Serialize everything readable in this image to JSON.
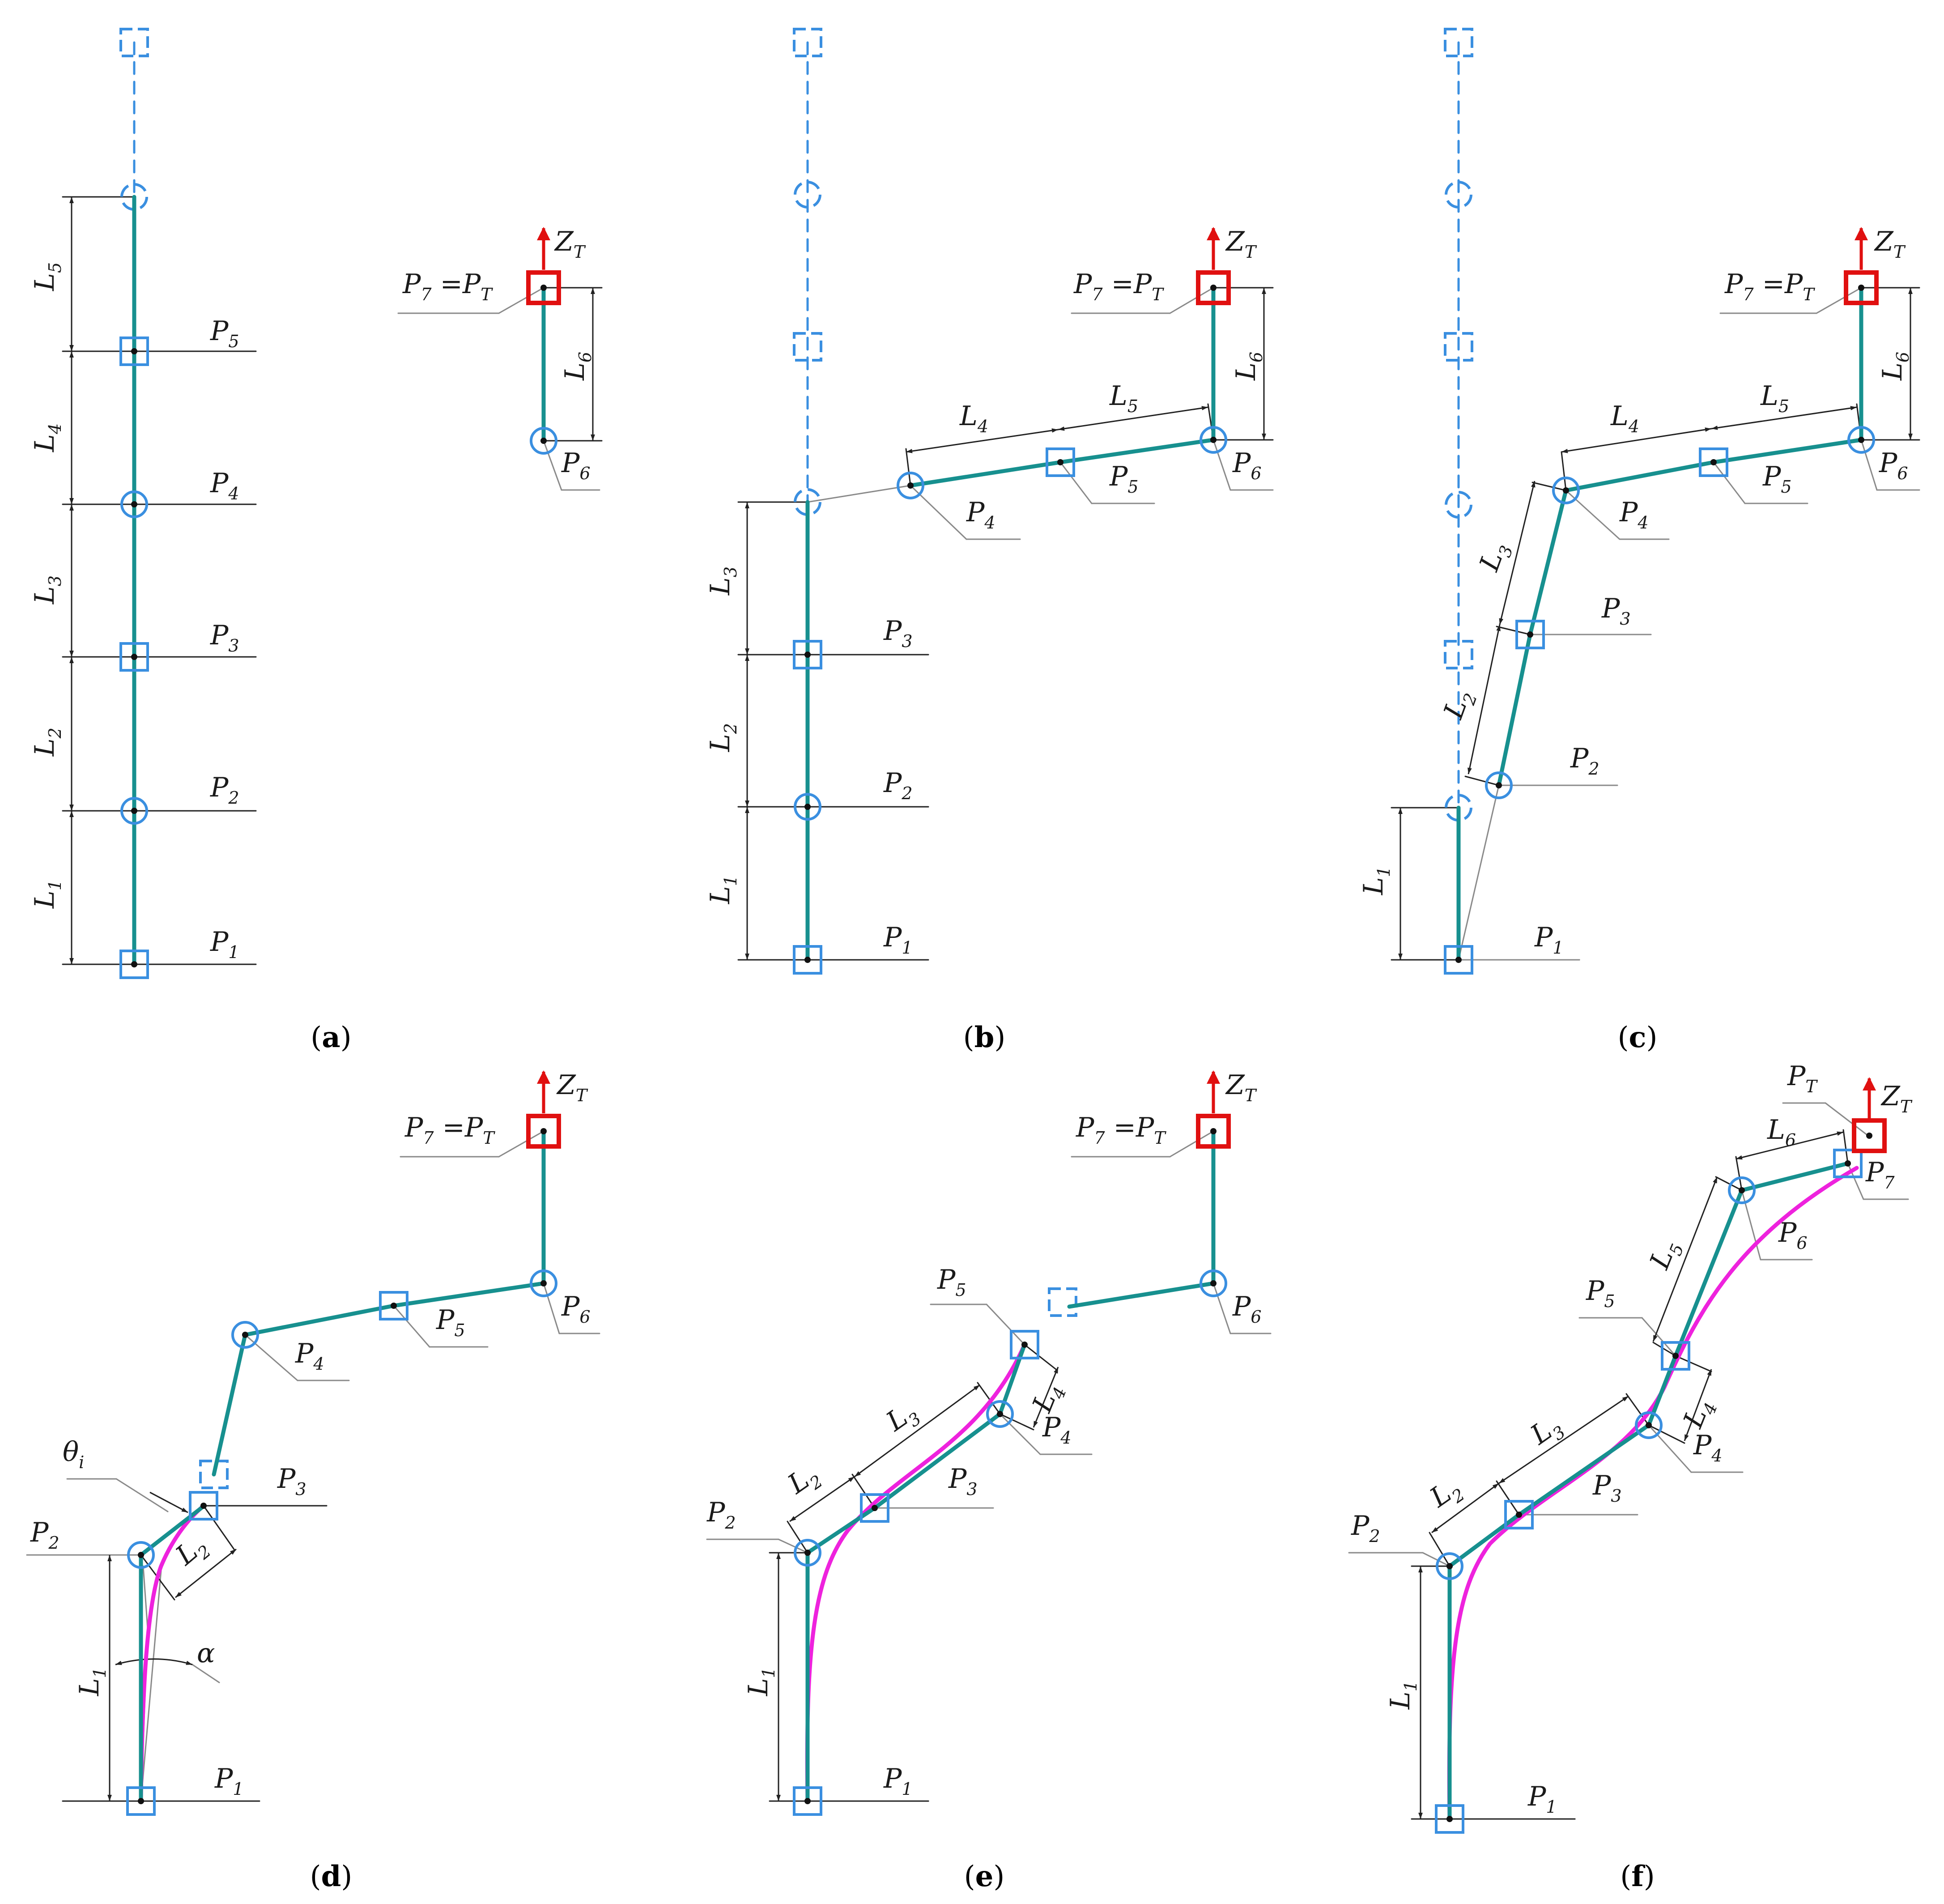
{
  "colors": {
    "link": "#17908f",
    "joint": "#3a8fe0",
    "ghost": "#3a8fe0",
    "target": "#e01010",
    "curve": "#ee22dd",
    "line": "#222222",
    "thin": "#8a8a8a"
  },
  "icons": {
    "rotary_joint": "circle-joint-icon",
    "prismatic_joint": "square-joint-icon",
    "target_frame": "red-square-target-icon",
    "axis_arrow": "arrow-up-icon"
  },
  "captions": {
    "a": {
      "open": "(",
      "letter": "a",
      "close": ")"
    },
    "b": {
      "open": "(",
      "letter": "b",
      "close": ")"
    },
    "c": {
      "open": "(",
      "letter": "c",
      "close": ")"
    },
    "d": {
      "open": "(",
      "letter": "d",
      "close": ")"
    },
    "e": {
      "open": "(",
      "letter": "e",
      "close": ")"
    },
    "f": {
      "open": "(",
      "letter": "f",
      "close": ")"
    }
  },
  "labels": {
    "a": {
      "P1": {
        "base": "P",
        "sub": "1"
      },
      "P2": {
        "base": "P",
        "sub": "2"
      },
      "P3": {
        "base": "P",
        "sub": "3"
      },
      "P4": {
        "base": "P",
        "sub": "4"
      },
      "P5": {
        "base": "P",
        "sub": "5"
      },
      "P6": {
        "base": "P",
        "sub": "6"
      },
      "L1": {
        "base": "L",
        "sub": "1"
      },
      "L2": {
        "base": "L",
        "sub": "2"
      },
      "L3": {
        "base": "L",
        "sub": "3"
      },
      "L4": {
        "base": "L",
        "sub": "4"
      },
      "L5": {
        "base": "L",
        "sub": "5"
      },
      "L6": {
        "base": "L",
        "sub": "6"
      },
      "P7": {
        "left": "P",
        "lsub": "7",
        "eq": " =",
        "right": "P",
        "rsub": "T"
      },
      "ZT": {
        "base": "Z",
        "sub": "T"
      }
    },
    "b": {
      "P1": {
        "base": "P",
        "sub": "1"
      },
      "P2": {
        "base": "P",
        "sub": "2"
      },
      "P3": {
        "base": "P",
        "sub": "3"
      },
      "P4": {
        "base": "P",
        "sub": "4"
      },
      "P5": {
        "base": "P",
        "sub": "5"
      },
      "P6": {
        "base": "P",
        "sub": "6"
      },
      "L1": {
        "base": "L",
        "sub": "1"
      },
      "L2": {
        "base": "L",
        "sub": "2"
      },
      "L3": {
        "base": "L",
        "sub": "3"
      },
      "L4": {
        "base": "L",
        "sub": "4"
      },
      "L5": {
        "base": "L",
        "sub": "5"
      },
      "L6": {
        "base": "L",
        "sub": "6"
      },
      "P7": {
        "left": "P",
        "lsub": "7",
        "eq": " =",
        "right": "P",
        "rsub": "T"
      },
      "ZT": {
        "base": "Z",
        "sub": "T"
      }
    },
    "c": {
      "P1": {
        "base": "P",
        "sub": "1"
      },
      "P2": {
        "base": "P",
        "sub": "2"
      },
      "P3": {
        "base": "P",
        "sub": "3"
      },
      "P4": {
        "base": "P",
        "sub": "4"
      },
      "P5": {
        "base": "P",
        "sub": "5"
      },
      "P6": {
        "base": "P",
        "sub": "6"
      },
      "L1": {
        "base": "L",
        "sub": "1"
      },
      "L2": {
        "base": "L",
        "sub": "2"
      },
      "L3": {
        "base": "L",
        "sub": "3"
      },
      "L4": {
        "base": "L",
        "sub": "4"
      },
      "L5": {
        "base": "L",
        "sub": "5"
      },
      "L6": {
        "base": "L",
        "sub": "6"
      },
      "P7": {
        "left": "P",
        "lsub": "7",
        "eq": " =",
        "right": "P",
        "rsub": "T"
      },
      "ZT": {
        "base": "Z",
        "sub": "T"
      }
    },
    "d": {
      "P1": {
        "base": "P",
        "sub": "1"
      },
      "P2": {
        "base": "P",
        "sub": "2"
      },
      "P3": {
        "base": "P",
        "sub": "3"
      },
      "P4": {
        "base": "P",
        "sub": "4"
      },
      "P5": {
        "base": "P",
        "sub": "5"
      },
      "P6": {
        "base": "P",
        "sub": "6"
      },
      "L1": {
        "base": "L",
        "sub": "1"
      },
      "L2": {
        "base": "L",
        "sub": "2"
      },
      "theta": {
        "base": "θ",
        "sub": "i"
      },
      "alpha": {
        "base": "α",
        "sub": ""
      },
      "P7": {
        "left": "P",
        "lsub": "7",
        "eq": " =",
        "right": "P",
        "rsub": "T"
      },
      "ZT": {
        "base": "Z",
        "sub": "T"
      }
    },
    "e": {
      "P1": {
        "base": "P",
        "sub": "1"
      },
      "P2": {
        "base": "P",
        "sub": "2"
      },
      "P3": {
        "base": "P",
        "sub": "3"
      },
      "P4": {
        "base": "P",
        "sub": "4"
      },
      "P5": {
        "base": "P",
        "sub": "5"
      },
      "P6": {
        "base": "P",
        "sub": "6"
      },
      "L1": {
        "base": "L",
        "sub": "1"
      },
      "L2": {
        "base": "L",
        "sub": "2"
      },
      "L3": {
        "base": "L",
        "sub": "3"
      },
      "L4": {
        "base": "L",
        "sub": "4"
      },
      "P7": {
        "left": "P",
        "lsub": "7",
        "eq": " =",
        "right": "P",
        "rsub": "T"
      },
      "ZT": {
        "base": "Z",
        "sub": "T"
      }
    },
    "f": {
      "P1": {
        "base": "P",
        "sub": "1"
      },
      "P2": {
        "base": "P",
        "sub": "2"
      },
      "P3": {
        "base": "P",
        "sub": "3"
      },
      "P4": {
        "base": "P",
        "sub": "4"
      },
      "P5": {
        "base": "P",
        "sub": "5"
      },
      "P6": {
        "base": "P",
        "sub": "6"
      },
      "P7": {
        "base": "P",
        "sub": "7"
      },
      "PT": {
        "base": "P",
        "sub": "T"
      },
      "L1": {
        "base": "L",
        "sub": "1"
      },
      "L2": {
        "base": "L",
        "sub": "2"
      },
      "L3": {
        "base": "L",
        "sub": "3"
      },
      "L4": {
        "base": "L",
        "sub": "4"
      },
      "L5": {
        "base": "L",
        "sub": "5"
      },
      "L6": {
        "base": "L",
        "sub": "6"
      },
      "ZT": {
        "base": "Z",
        "sub": "T"
      }
    }
  }
}
